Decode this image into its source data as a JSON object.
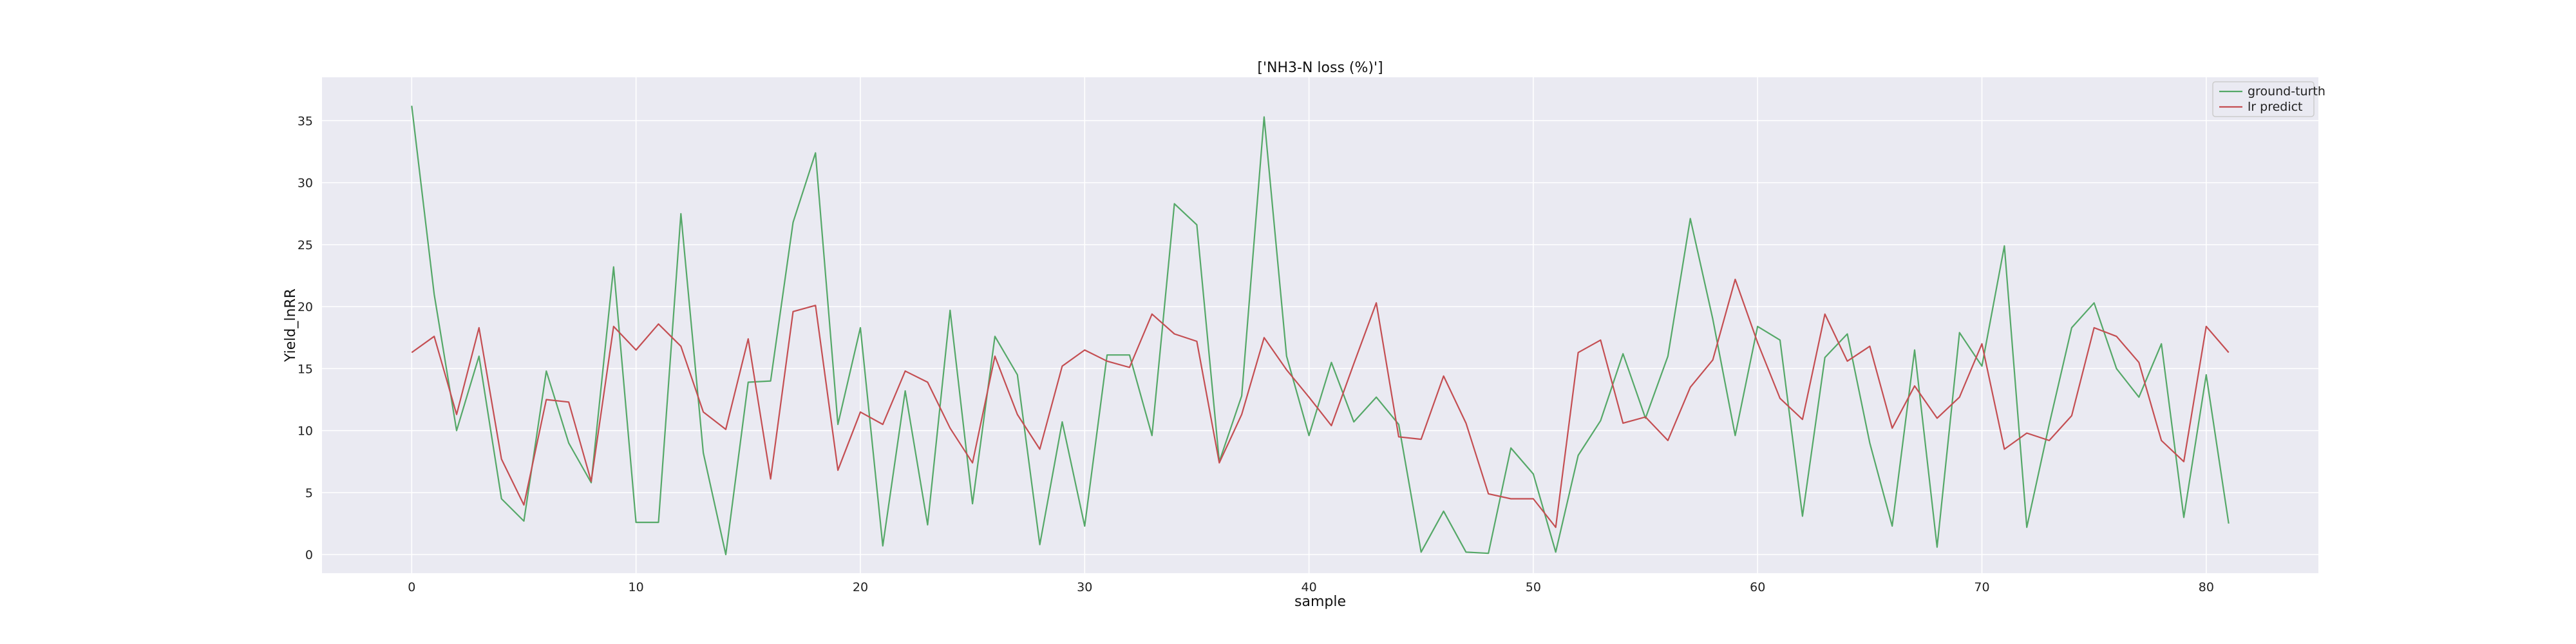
{
  "chart_data": {
    "type": "line",
    "title": "['NH3-N loss (%)']",
    "xlabel": "sample",
    "ylabel": "Yield_lnRR",
    "xlim": [
      -4,
      85
    ],
    "ylim": [
      -1.5,
      38.5
    ],
    "xticks": [
      0,
      10,
      20,
      30,
      40,
      50,
      60,
      70,
      80
    ],
    "yticks": [
      0,
      5,
      10,
      15,
      20,
      25,
      30,
      35
    ],
    "grid": true,
    "legend_position": "top-right",
    "colors": {
      "ground_truth": "#55a868",
      "lr_predict": "#c44e52",
      "plot_bg": "#eaeaf2",
      "grid": "#ffffff"
    },
    "series": [
      {
        "name": "ground-turth",
        "color": "#55a868",
        "values": [
          36.2,
          21.0,
          10.0,
          16.0,
          4.5,
          2.7,
          14.8,
          9.0,
          5.8,
          23.2,
          2.6,
          2.6,
          27.5,
          8.2,
          0.0,
          13.9,
          14.0,
          26.8,
          32.4,
          10.5,
          18.3,
          0.7,
          13.2,
          2.4,
          19.7,
          4.1,
          17.6,
          14.5,
          0.8,
          10.7,
          2.3,
          16.1,
          16.1,
          9.6,
          28.3,
          26.6,
          7.5,
          12.8,
          35.3,
          16.0,
          9.6,
          15.5,
          10.7,
          12.7,
          10.5,
          0.2,
          3.5,
          0.2,
          0.1,
          8.6,
          6.5,
          0.2,
          8.0,
          10.8,
          16.2,
          11.0,
          16.0,
          27.1,
          19.0,
          9.6,
          18.4,
          17.3,
          3.1,
          15.9,
          17.8,
          9.0,
          2.3,
          16.5,
          0.6,
          17.9,
          15.2,
          24.9,
          2.2,
          10.5,
          18.3,
          20.3,
          15.0,
          12.7,
          17.0,
          3.0,
          14.5,
          2.5
        ]
      },
      {
        "name": "lr predict",
        "color": "#c44e52",
        "values": [
          16.3,
          17.6,
          11.3,
          18.3,
          7.7,
          4.0,
          12.5,
          12.3,
          5.9,
          18.4,
          16.5,
          18.6,
          16.8,
          11.5,
          10.1,
          17.4,
          6.1,
          19.6,
          20.1,
          6.8,
          11.5,
          10.5,
          14.8,
          13.9,
          10.2,
          7.4,
          16.0,
          11.3,
          8.5,
          15.2,
          16.5,
          15.6,
          15.1,
          19.4,
          17.8,
          17.2,
          7.4,
          11.3,
          17.5,
          14.9,
          12.7,
          10.4,
          15.4,
          20.3,
          9.5,
          9.3,
          14.4,
          10.6,
          4.9,
          4.5,
          4.5,
          2.2,
          16.3,
          17.3,
          10.6,
          11.1,
          9.2,
          13.5,
          15.7,
          22.2,
          17.1,
          12.6,
          10.9,
          19.4,
          15.6,
          16.8,
          10.2,
          13.6,
          11.0,
          12.7,
          17.0,
          8.5,
          9.8,
          9.2,
          11.2,
          18.3,
          17.6,
          15.5,
          9.2,
          7.5,
          18.4,
          16.3
        ]
      }
    ]
  }
}
